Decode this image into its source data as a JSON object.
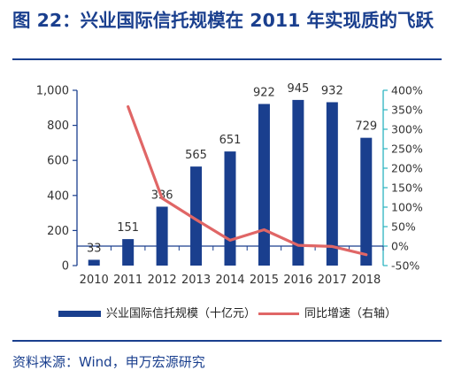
{
  "figure": {
    "title": "图 22：兴业国际信托规模在 2011 年实现质的飞跃",
    "source": "资料来源：Wind，申万宏源研究"
  },
  "colors": {
    "title": "#1a3f8e",
    "bar": "#1a3f8e",
    "line": "#e06666",
    "axis_right": "#2bb3c0",
    "axis_left": "#1a3f8e",
    "text": "#333333"
  },
  "chart_data": {
    "type": "bar",
    "categories": [
      "2010",
      "2011",
      "2012",
      "2013",
      "2014",
      "2015",
      "2016",
      "2017",
      "2018"
    ],
    "series": [
      {
        "name": "兴业国际信托规模（十亿元）",
        "type": "bar",
        "axis": "left",
        "values": [
          33,
          151,
          336,
          565,
          651,
          922,
          945,
          932,
          729
        ],
        "data_labels": [
          "33",
          "151",
          "336",
          "565",
          "651",
          "922",
          "945",
          "932",
          "729"
        ]
      },
      {
        "name": "同比增速（右轴）",
        "type": "line",
        "axis": "right",
        "values": [
          null,
          358,
          123,
          68,
          15,
          42,
          2,
          -1,
          -22
        ]
      }
    ],
    "y_left": {
      "range": [
        0,
        1000
      ],
      "ticks": [
        0,
        200,
        400,
        600,
        800,
        1000
      ],
      "tick_labels": [
        "0",
        "200",
        "400",
        "600",
        "800",
        "1,000"
      ]
    },
    "y_right": {
      "range": [
        -50,
        400
      ],
      "ticks": [
        -50,
        0,
        50,
        100,
        150,
        200,
        250,
        300,
        350,
        400
      ],
      "tick_labels": [
        "-50%",
        "0%",
        "50%",
        "100%",
        "150%",
        "200%",
        "250%",
        "300%",
        "350%",
        "400%"
      ]
    },
    "grid": false,
    "legend_position": "bottom"
  }
}
